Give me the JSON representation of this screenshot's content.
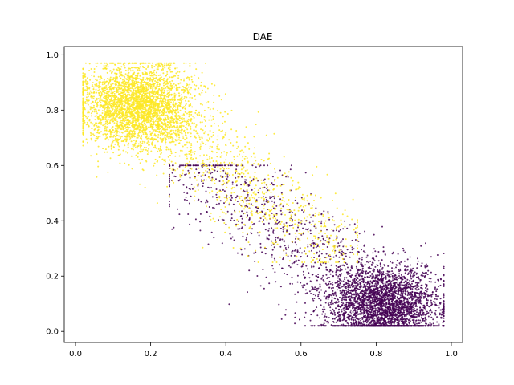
{
  "chart_data": {
    "type": "scatter",
    "title": "DAE",
    "xlabel": "",
    "ylabel": "",
    "xlim": [
      -0.03,
      1.03
    ],
    "ylim": [
      -0.04,
      1.03
    ],
    "xticks": [
      "0.0",
      "0.2",
      "0.4",
      "0.6",
      "0.8",
      "1.0"
    ],
    "yticks": [
      "0.0",
      "0.2",
      "0.4",
      "0.6",
      "0.8",
      "1.0"
    ],
    "grid": false,
    "legend": "none",
    "series": [
      {
        "color": "#440154",
        "center": [
          0.82,
          0.09
        ],
        "dense_core_x": [
          0.62,
          0.96
        ],
        "dense_core_y": [
          0.02,
          0.32
        ],
        "spread_x": [
          0.25,
          0.98
        ],
        "spread_y": [
          0.02,
          0.6
        ]
      },
      {
        "color": "#fde725",
        "center": [
          0.16,
          0.82
        ],
        "dense_core_x": [
          0.03,
          0.35
        ],
        "dense_core_y": [
          0.6,
          0.97
        ],
        "spread_x": [
          0.02,
          0.75
        ],
        "spread_y": [
          0.25,
          0.97
        ]
      }
    ]
  }
}
